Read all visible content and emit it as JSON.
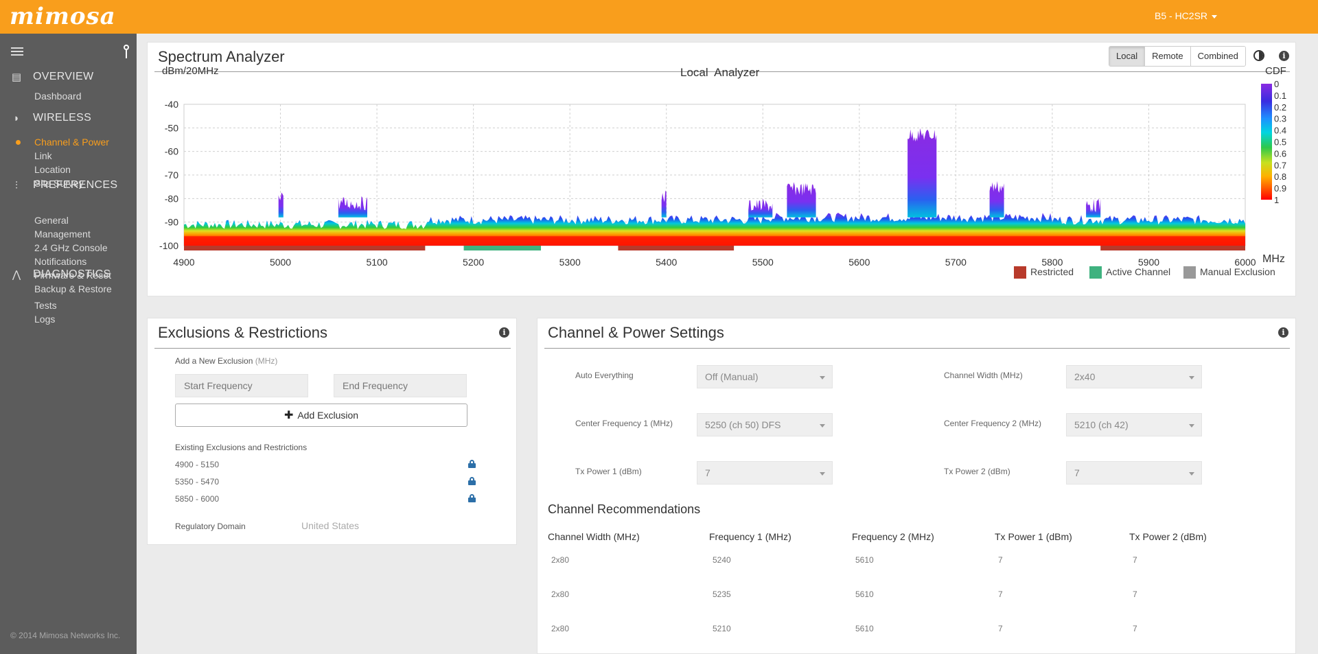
{
  "header": {
    "logo": "mimosa",
    "device": "B5 - HC2SR"
  },
  "sidebar": {
    "sections": [
      {
        "title": "OVERVIEW",
        "icon": "document-icon",
        "items": [
          "Dashboard"
        ]
      },
      {
        "title": "WIRELESS",
        "icon": "wifi-icon",
        "items": [
          "Channel & Power",
          "Link",
          "Location",
          "Site Survey"
        ]
      },
      {
        "title": "PREFERENCES",
        "icon": "sliders-icon",
        "items": [
          "General",
          "Management",
          "2.4 GHz Console",
          "Notifications",
          "Firmware & Reset",
          "Backup & Restore"
        ]
      },
      {
        "title": "DIAGNOSTICS",
        "icon": "pulse-icon",
        "items": [
          "Tests",
          "Logs"
        ]
      }
    ],
    "active_item": "Channel & Power",
    "copyright": "© 2014 Mimosa Networks Inc."
  },
  "spectrum": {
    "title": "Spectrum Analyzer",
    "toggle": [
      "Local",
      "Remote",
      "Combined"
    ],
    "toggle_active": "Local",
    "chart_title": "Local  Analyzer",
    "ylabel": "dBm/20MHz",
    "xunit": "MHz",
    "cdf_label": "CDF",
    "legend": [
      {
        "label": "Restricted",
        "color": "#b83a2b"
      },
      {
        "label": "Active Channel",
        "color": "#3fb27f"
      },
      {
        "label": "Manual Exclusion",
        "color": "#999999"
      }
    ]
  },
  "chart_data": {
    "type": "heatmap",
    "title": "Local  Analyzer",
    "ylabel": "dBm/20MHz",
    "xlabel": "MHz",
    "x_ticks": [
      4900,
      5000,
      5100,
      5200,
      5300,
      5400,
      5500,
      5600,
      5700,
      5800,
      5900,
      6000
    ],
    "y_ticks": [
      -40,
      -50,
      -60,
      -70,
      -80,
      -90,
      -100
    ],
    "xlim": [
      4900,
      6000
    ],
    "ylim": [
      -100,
      -40
    ],
    "colorbar_ticks": [
      "0",
      "0.1",
      "0.2",
      "0.3",
      "0.4",
      "0.5",
      "0.6",
      "0.7",
      "0.8",
      "0.9",
      "1"
    ],
    "grid": true,
    "noise_floor_dbm": -91,
    "peaks": [
      {
        "from": 4998,
        "to": 5003,
        "top": -75
      },
      {
        "from": 5060,
        "to": 5090,
        "top": -79
      },
      {
        "from": 5395,
        "to": 5400,
        "top": -76
      },
      {
        "from": 5485,
        "to": 5510,
        "top": -80
      },
      {
        "from": 5525,
        "to": 5555,
        "top": -73
      },
      {
        "from": 5650,
        "to": 5680,
        "top": -50
      },
      {
        "from": 5735,
        "to": 5750,
        "top": -72
      },
      {
        "from": 5835,
        "to": 5850,
        "top": -80
      }
    ],
    "bands": [
      {
        "from": 4900,
        "to": 5150,
        "type": "Restricted"
      },
      {
        "from": 5190,
        "to": 5270,
        "type": "Active Channel"
      },
      {
        "from": 5350,
        "to": 5470,
        "type": "Restricted"
      },
      {
        "from": 5850,
        "to": 6000,
        "type": "Restricted"
      }
    ]
  },
  "exclusions": {
    "title": "Exclusions & Restrictions",
    "add_label": "Add a New Exclusion",
    "add_unit": "(MHz)",
    "start_placeholder": "Start Frequency",
    "end_placeholder": "End Frequency",
    "add_button": "Add Exclusion",
    "existing_label": "Existing Exclusions and Restrictions",
    "items": [
      "4900 - 5150",
      "5350 - 5470",
      "5850 - 6000"
    ],
    "domain_label": "Regulatory Domain",
    "domain_value": "United States"
  },
  "channel_power": {
    "title": "Channel & Power Settings",
    "fields": {
      "auto": {
        "label": "Auto Everything",
        "value": "Off (Manual)"
      },
      "width": {
        "label": "Channel Width (MHz)",
        "value": "2x40"
      },
      "cf1": {
        "label": "Center Frequency 1 (MHz)",
        "value": "5250 (ch 50) DFS"
      },
      "cf2": {
        "label": "Center Frequency 2 (MHz)",
        "value": "5210 (ch 42)"
      },
      "tx1": {
        "label": "Tx Power 1 (dBm)",
        "value": "7"
      },
      "tx2": {
        "label": "Tx Power 2 (dBm)",
        "value": "7"
      }
    },
    "rec_title": "Channel Recommendations",
    "rec_headers": [
      "Channel Width (MHz)",
      "Frequency 1 (MHz)",
      "Frequency 2 (MHz)",
      "Tx Power 1 (dBm)",
      "Tx Power 2 (dBm)"
    ],
    "rec_rows": [
      [
        "2x80",
        "5240",
        "5610",
        "7",
        "7"
      ],
      [
        "2x80",
        "5235",
        "5610",
        "7",
        "7"
      ],
      [
        "2x80",
        "5210",
        "5610",
        "7",
        "7"
      ]
    ]
  }
}
